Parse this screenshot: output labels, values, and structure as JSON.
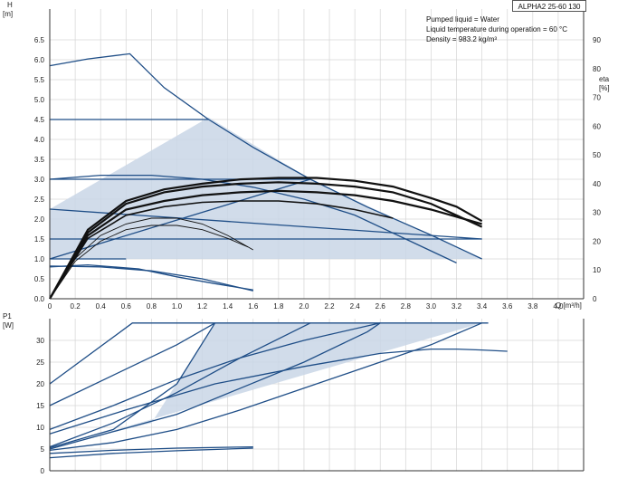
{
  "model": "ALPHA2 25-60 130",
  "info": {
    "line1": "Pumped liquid = Water",
    "line2": "Liquid temperature during operation = 60 °C",
    "line3": "Density = 983.2 kg/m³"
  },
  "colors": {
    "curve": "#1f4e87",
    "shade": "#c9d6e6",
    "efficiency": "#111111",
    "grid": "#d6d6d6"
  },
  "chart_data": [
    {
      "type": "line",
      "ylabel": "H",
      "yunit": "[m]",
      "y2label": "eta",
      "y2unit": "[%]",
      "xlabel": "Q [m³/h]",
      "xlim": [
        0,
        4.2
      ],
      "ylim": [
        0,
        6.5
      ],
      "y2lim": [
        0,
        90
      ],
      "xticks": [
        "0",
        "0.2",
        "0.4",
        "0.6",
        "0.8",
        "1.0",
        "1.2",
        "1.4",
        "1.6",
        "1.8",
        "2.0",
        "2.2",
        "2.4",
        "2.6",
        "2.8",
        "3.0",
        "3.2",
        "3.4",
        "3.6",
        "3.8",
        "4.0"
      ],
      "yticks": [
        "0.0",
        "0.5",
        "1.0",
        "1.5",
        "2.0",
        "2.5",
        "3.0",
        "3.5",
        "4.0",
        "4.5",
        "5.0",
        "5.5",
        "6.0",
        "6.5"
      ],
      "y2ticks": [
        "0",
        "10",
        "20",
        "30",
        "40",
        "50",
        "60",
        "70",
        "80",
        "90"
      ],
      "grid": true,
      "shaded_regions": [
        {
          "x": [
            0,
            1.25,
            2.05,
            3.4,
            0
          ],
          "y": [
            2.25,
            4.55,
            3.0,
            1.0,
            1.0
          ]
        }
      ],
      "series": [
        {
          "x": [
            0,
            0.3,
            0.63,
            0.9,
            1.25,
            1.6,
            2.05,
            2.5,
            3.0,
            3.4
          ],
          "y": [
            5.85,
            6.02,
            6.15,
            5.3,
            4.5,
            3.8,
            3.0,
            2.3,
            1.6,
            1.0
          ]
        },
        {
          "x": [
            0,
            1.25
          ],
          "y": [
            4.5,
            4.5
          ]
        },
        {
          "x": [
            0,
            2.05
          ],
          "y": [
            3.0,
            3.0
          ]
        },
        {
          "x": [
            0,
            0.4,
            0.8,
            1.2,
            1.6,
            2.0,
            2.4,
            2.8,
            3.2
          ],
          "y": [
            3.0,
            3.1,
            3.1,
            3.0,
            2.8,
            2.5,
            2.1,
            1.5,
            0.9
          ]
        },
        {
          "x": [
            0,
            3.4
          ],
          "y": [
            2.25,
            1.5
          ]
        },
        {
          "x": [
            0,
            3.4
          ],
          "y": [
            1.5,
            1.5
          ]
        },
        {
          "x": [
            0,
            2.05
          ],
          "y": [
            1.0,
            3.0
          ]
        },
        {
          "x": [
            0,
            0.6
          ],
          "y": [
            1.0,
            1.0
          ]
        },
        {
          "x": [
            0,
            0.4,
            0.8,
            1.2,
            1.6
          ],
          "y": [
            0.82,
            0.8,
            0.7,
            0.5,
            0.2
          ]
        },
        {
          "x": [
            0,
            0.3,
            0.7,
            1.0,
            1.3,
            1.6
          ],
          "y": [
            0.8,
            0.85,
            0.75,
            0.55,
            0.38,
            0.22
          ]
        }
      ],
      "efficiency_series": [
        {
          "x": [
            0,
            0.3,
            0.6,
            0.9,
            1.2,
            1.5,
            1.8,
            2.1,
            2.4,
            2.7,
            3.0,
            3.2,
            3.4
          ],
          "y": [
            0,
            24,
            34,
            38,
            40,
            41.5,
            42,
            42,
            41,
            39,
            35,
            32,
            27
          ]
        },
        {
          "x": [
            0,
            0.3,
            0.6,
            0.9,
            1.2,
            1.5,
            1.8,
            2.1,
            2.4,
            2.7,
            3.0,
            3.4
          ],
          "y": [
            0,
            23,
            33,
            37,
            39,
            40,
            40.5,
            40,
            39,
            37,
            33,
            25
          ]
        },
        {
          "x": [
            0,
            0.3,
            0.6,
            0.9,
            1.2,
            1.5,
            1.8,
            2.1,
            2.4,
            2.7,
            3.0,
            3.4
          ],
          "y": [
            0,
            22,
            31,
            34,
            36,
            37,
            37.5,
            37,
            36,
            34,
            31,
            26
          ]
        },
        {
          "x": [
            0,
            0.3,
            0.6,
            0.9,
            1.2,
            1.5,
            1.8,
            2.1,
            2.4,
            2.7
          ],
          "y": [
            0,
            21,
            29,
            32,
            33.5,
            34,
            34,
            33,
            31,
            28
          ]
        },
        {
          "x": [
            0,
            0.2,
            0.4,
            0.6,
            0.8,
            1.0,
            1.2,
            1.4,
            1.6
          ],
          "y": [
            0,
            14,
            22,
            26,
            28,
            28,
            26,
            22,
            17
          ]
        },
        {
          "x": [
            0,
            0.2,
            0.4,
            0.6,
            0.8,
            1.0,
            1.2,
            1.4,
            1.56
          ],
          "y": [
            0,
            13,
            20,
            24,
            25.5,
            25.5,
            24,
            21,
            18
          ]
        }
      ]
    },
    {
      "type": "line",
      "ylabel": "P1",
      "yunit": "[W]",
      "xlim": [
        0,
        4.2
      ],
      "ylim": [
        0,
        35
      ],
      "yticks": [
        "0",
        "5",
        "10",
        "15",
        "20",
        "25",
        "30"
      ],
      "grid": true,
      "shaded_regions": [
        {
          "x": [
            0,
            0.8,
            1.3,
            2.6,
            3.4,
            3.4,
            0
          ],
          "y": [
            5.5,
            11,
            34,
            34,
            34,
            34,
            5.0
          ]
        }
      ],
      "series": [
        {
          "x": [
            0,
            0.65,
            3.45
          ],
          "y": [
            20,
            34,
            34
          ]
        },
        {
          "x": [
            0,
            0.5,
            1.0,
            1.3
          ],
          "y": [
            15,
            22,
            29,
            34
          ]
        },
        {
          "x": [
            0,
            0.5,
            1.0,
            1.5,
            2.0,
            2.6
          ],
          "y": [
            9.5,
            15,
            21,
            26,
            30,
            34
          ]
        },
        {
          "x": [
            0,
            0.6,
            1.3,
            2.0,
            2.6,
            3.0,
            3.2,
            3.4,
            3.6
          ],
          "y": [
            8.5,
            14,
            20,
            24,
            27,
            28,
            28,
            27.8,
            27.5
          ]
        },
        {
          "x": [
            0,
            0.5,
            1.0,
            1.5,
            2.0,
            2.6,
            3.0,
            3.4
          ],
          "y": [
            4.7,
            6.5,
            9.5,
            14,
            19,
            25,
            29,
            34
          ]
        },
        {
          "x": [
            0,
            0.5,
            1.0,
            1.3
          ],
          "y": [
            5.3,
            9.5,
            20,
            34
          ]
        },
        {
          "x": [
            0,
            0.5,
            1.0,
            1.5,
            2.05
          ],
          "y": [
            5.5,
            11,
            18,
            26,
            34
          ]
        },
        {
          "x": [
            0,
            0.5,
            1.0,
            1.5,
            2.0,
            2.5,
            2.6
          ],
          "y": [
            5.0,
            9,
            13,
            19,
            25,
            32,
            34
          ]
        },
        {
          "x": [
            0,
            0.5,
            1.0,
            1.6
          ],
          "y": [
            4.0,
            4.7,
            5.2,
            5.5
          ]
        },
        {
          "x": [
            0,
            0.5,
            1.0,
            1.6
          ],
          "y": [
            3.0,
            4.0,
            4.6,
            5.2
          ]
        }
      ]
    }
  ]
}
